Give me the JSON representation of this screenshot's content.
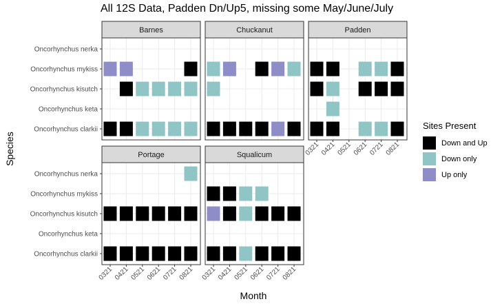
{
  "chart_data": {
    "type": "heatmap",
    "title": "All 12S Data, Padden Dn/Up5, missing some May/June/July",
    "xlabel": "Month",
    "ylabel": "Species",
    "x_categories": [
      "0321",
      "0421",
      "0521",
      "0621",
      "0721",
      "0821"
    ],
    "y_categories": [
      "Oncorhynchus nerka",
      "Oncorhynchus mykiss",
      "Oncorhynchus kisutch",
      "Oncorhynchus keta",
      "Oncorhynchus clarkii"
    ],
    "legend": {
      "title": "Sites Present",
      "position": "right",
      "entries": [
        {
          "key": "both",
          "label": "Down and Up",
          "color": "#000000"
        },
        {
          "key": "down",
          "label": "Down only",
          "color": "#8FC5C5"
        },
        {
          "key": "up",
          "label": "Up only",
          "color": "#8F8DC8"
        }
      ]
    },
    "grid": true,
    "panels": [
      {
        "name": "Barnes",
        "cells": [
          {
            "species": "Oncorhynchus mykiss",
            "month": "0321",
            "value": "Up only"
          },
          {
            "species": "Oncorhynchus mykiss",
            "month": "0421",
            "value": "Up only"
          },
          {
            "species": "Oncorhynchus mykiss",
            "month": "0821",
            "value": "Down and Up"
          },
          {
            "species": "Oncorhynchus kisutch",
            "month": "0421",
            "value": "Down and Up"
          },
          {
            "species": "Oncorhynchus kisutch",
            "month": "0521",
            "value": "Down only"
          },
          {
            "species": "Oncorhynchus kisutch",
            "month": "0621",
            "value": "Down only"
          },
          {
            "species": "Oncorhynchus kisutch",
            "month": "0721",
            "value": "Down only"
          },
          {
            "species": "Oncorhynchus kisutch",
            "month": "0821",
            "value": "Down only"
          },
          {
            "species": "Oncorhynchus clarkii",
            "month": "0321",
            "value": "Down and Up"
          },
          {
            "species": "Oncorhynchus clarkii",
            "month": "0421",
            "value": "Down and Up"
          },
          {
            "species": "Oncorhynchus clarkii",
            "month": "0521",
            "value": "Down only"
          },
          {
            "species": "Oncorhynchus clarkii",
            "month": "0621",
            "value": "Down only"
          },
          {
            "species": "Oncorhynchus clarkii",
            "month": "0721",
            "value": "Down only"
          },
          {
            "species": "Oncorhynchus clarkii",
            "month": "0821",
            "value": "Down only"
          }
        ]
      },
      {
        "name": "Chuckanut",
        "cells": [
          {
            "species": "Oncorhynchus mykiss",
            "month": "0321",
            "value": "Down only"
          },
          {
            "species": "Oncorhynchus mykiss",
            "month": "0421",
            "value": "Up only"
          },
          {
            "species": "Oncorhynchus mykiss",
            "month": "0621",
            "value": "Down and Up"
          },
          {
            "species": "Oncorhynchus mykiss",
            "month": "0721",
            "value": "Up only"
          },
          {
            "species": "Oncorhynchus mykiss",
            "month": "0821",
            "value": "Down only"
          },
          {
            "species": "Oncorhynchus kisutch",
            "month": "0321",
            "value": "Down only"
          },
          {
            "species": "Oncorhynchus clarkii",
            "month": "0321",
            "value": "Down and Up"
          },
          {
            "species": "Oncorhynchus clarkii",
            "month": "0421",
            "value": "Down and Up"
          },
          {
            "species": "Oncorhynchus clarkii",
            "month": "0521",
            "value": "Down and Up"
          },
          {
            "species": "Oncorhynchus clarkii",
            "month": "0621",
            "value": "Down and Up"
          },
          {
            "species": "Oncorhynchus clarkii",
            "month": "0721",
            "value": "Up only"
          },
          {
            "species": "Oncorhynchus clarkii",
            "month": "0821",
            "value": "Down and Up"
          }
        ]
      },
      {
        "name": "Padden",
        "cells": [
          {
            "species": "Oncorhynchus mykiss",
            "month": "0321",
            "value": "Down and Up"
          },
          {
            "species": "Oncorhynchus mykiss",
            "month": "0421",
            "value": "Down and Up"
          },
          {
            "species": "Oncorhynchus mykiss",
            "month": "0621",
            "value": "Down only"
          },
          {
            "species": "Oncorhynchus mykiss",
            "month": "0721",
            "value": "Down only"
          },
          {
            "species": "Oncorhynchus mykiss",
            "month": "0821",
            "value": "Down and Up"
          },
          {
            "species": "Oncorhynchus kisutch",
            "month": "0321",
            "value": "Down and Up"
          },
          {
            "species": "Oncorhynchus kisutch",
            "month": "0421",
            "value": "Down only"
          },
          {
            "species": "Oncorhynchus kisutch",
            "month": "0621",
            "value": "Down and Up"
          },
          {
            "species": "Oncorhynchus kisutch",
            "month": "0721",
            "value": "Down and Up"
          },
          {
            "species": "Oncorhynchus kisutch",
            "month": "0821",
            "value": "Down and Up"
          },
          {
            "species": "Oncorhynchus keta",
            "month": "0421",
            "value": "Down only"
          },
          {
            "species": "Oncorhynchus clarkii",
            "month": "0321",
            "value": "Down and Up"
          },
          {
            "species": "Oncorhynchus clarkii",
            "month": "0421",
            "value": "Down and Up"
          },
          {
            "species": "Oncorhynchus clarkii",
            "month": "0621",
            "value": "Down only"
          },
          {
            "species": "Oncorhynchus clarkii",
            "month": "0721",
            "value": "Down only"
          },
          {
            "species": "Oncorhynchus clarkii",
            "month": "0821",
            "value": "Down and Up"
          }
        ]
      },
      {
        "name": "Portage",
        "cells": [
          {
            "species": "Oncorhynchus nerka",
            "month": "0821",
            "value": "Down only"
          },
          {
            "species": "Oncorhynchus kisutch",
            "month": "0321",
            "value": "Down and Up"
          },
          {
            "species": "Oncorhynchus kisutch",
            "month": "0421",
            "value": "Down and Up"
          },
          {
            "species": "Oncorhynchus kisutch",
            "month": "0521",
            "value": "Down and Up"
          },
          {
            "species": "Oncorhynchus kisutch",
            "month": "0621",
            "value": "Down and Up"
          },
          {
            "species": "Oncorhynchus kisutch",
            "month": "0721",
            "value": "Down and Up"
          },
          {
            "species": "Oncorhynchus kisutch",
            "month": "0821",
            "value": "Down and Up"
          },
          {
            "species": "Oncorhynchus clarkii",
            "month": "0321",
            "value": "Down and Up"
          },
          {
            "species": "Oncorhynchus clarkii",
            "month": "0421",
            "value": "Down and Up"
          },
          {
            "species": "Oncorhynchus clarkii",
            "month": "0521",
            "value": "Down and Up"
          },
          {
            "species": "Oncorhynchus clarkii",
            "month": "0621",
            "value": "Down and Up"
          },
          {
            "species": "Oncorhynchus clarkii",
            "month": "0721",
            "value": "Down and Up"
          },
          {
            "species": "Oncorhynchus clarkii",
            "month": "0821",
            "value": "Down and Up"
          }
        ]
      },
      {
        "name": "Squalicum",
        "cells": [
          {
            "species": "Oncorhynchus mykiss",
            "month": "0321",
            "value": "Down and Up"
          },
          {
            "species": "Oncorhynchus mykiss",
            "month": "0421",
            "value": "Down and Up"
          },
          {
            "species": "Oncorhynchus mykiss",
            "month": "0521",
            "value": "Down only"
          },
          {
            "species": "Oncorhynchus mykiss",
            "month": "0621",
            "value": "Down only"
          },
          {
            "species": "Oncorhynchus kisutch",
            "month": "0321",
            "value": "Up only"
          },
          {
            "species": "Oncorhynchus kisutch",
            "month": "0421",
            "value": "Down and Up"
          },
          {
            "species": "Oncorhynchus kisutch",
            "month": "0521",
            "value": "Down only"
          },
          {
            "species": "Oncorhynchus kisutch",
            "month": "0621",
            "value": "Down and Up"
          },
          {
            "species": "Oncorhynchus kisutch",
            "month": "0721",
            "value": "Down and Up"
          },
          {
            "species": "Oncorhynchus kisutch",
            "month": "0821",
            "value": "Down and Up"
          },
          {
            "species": "Oncorhynchus clarkii",
            "month": "0321",
            "value": "Down and Up"
          },
          {
            "species": "Oncorhynchus clarkii",
            "month": "0421",
            "value": "Down and Up"
          },
          {
            "species": "Oncorhynchus clarkii",
            "month": "0521",
            "value": "Down only"
          },
          {
            "species": "Oncorhynchus clarkii",
            "month": "0621",
            "value": "Down and Up"
          },
          {
            "species": "Oncorhynchus clarkii",
            "month": "0721",
            "value": "Down and Up"
          },
          {
            "species": "Oncorhynchus clarkii",
            "month": "0821",
            "value": "Down and Up"
          }
        ]
      }
    ]
  }
}
